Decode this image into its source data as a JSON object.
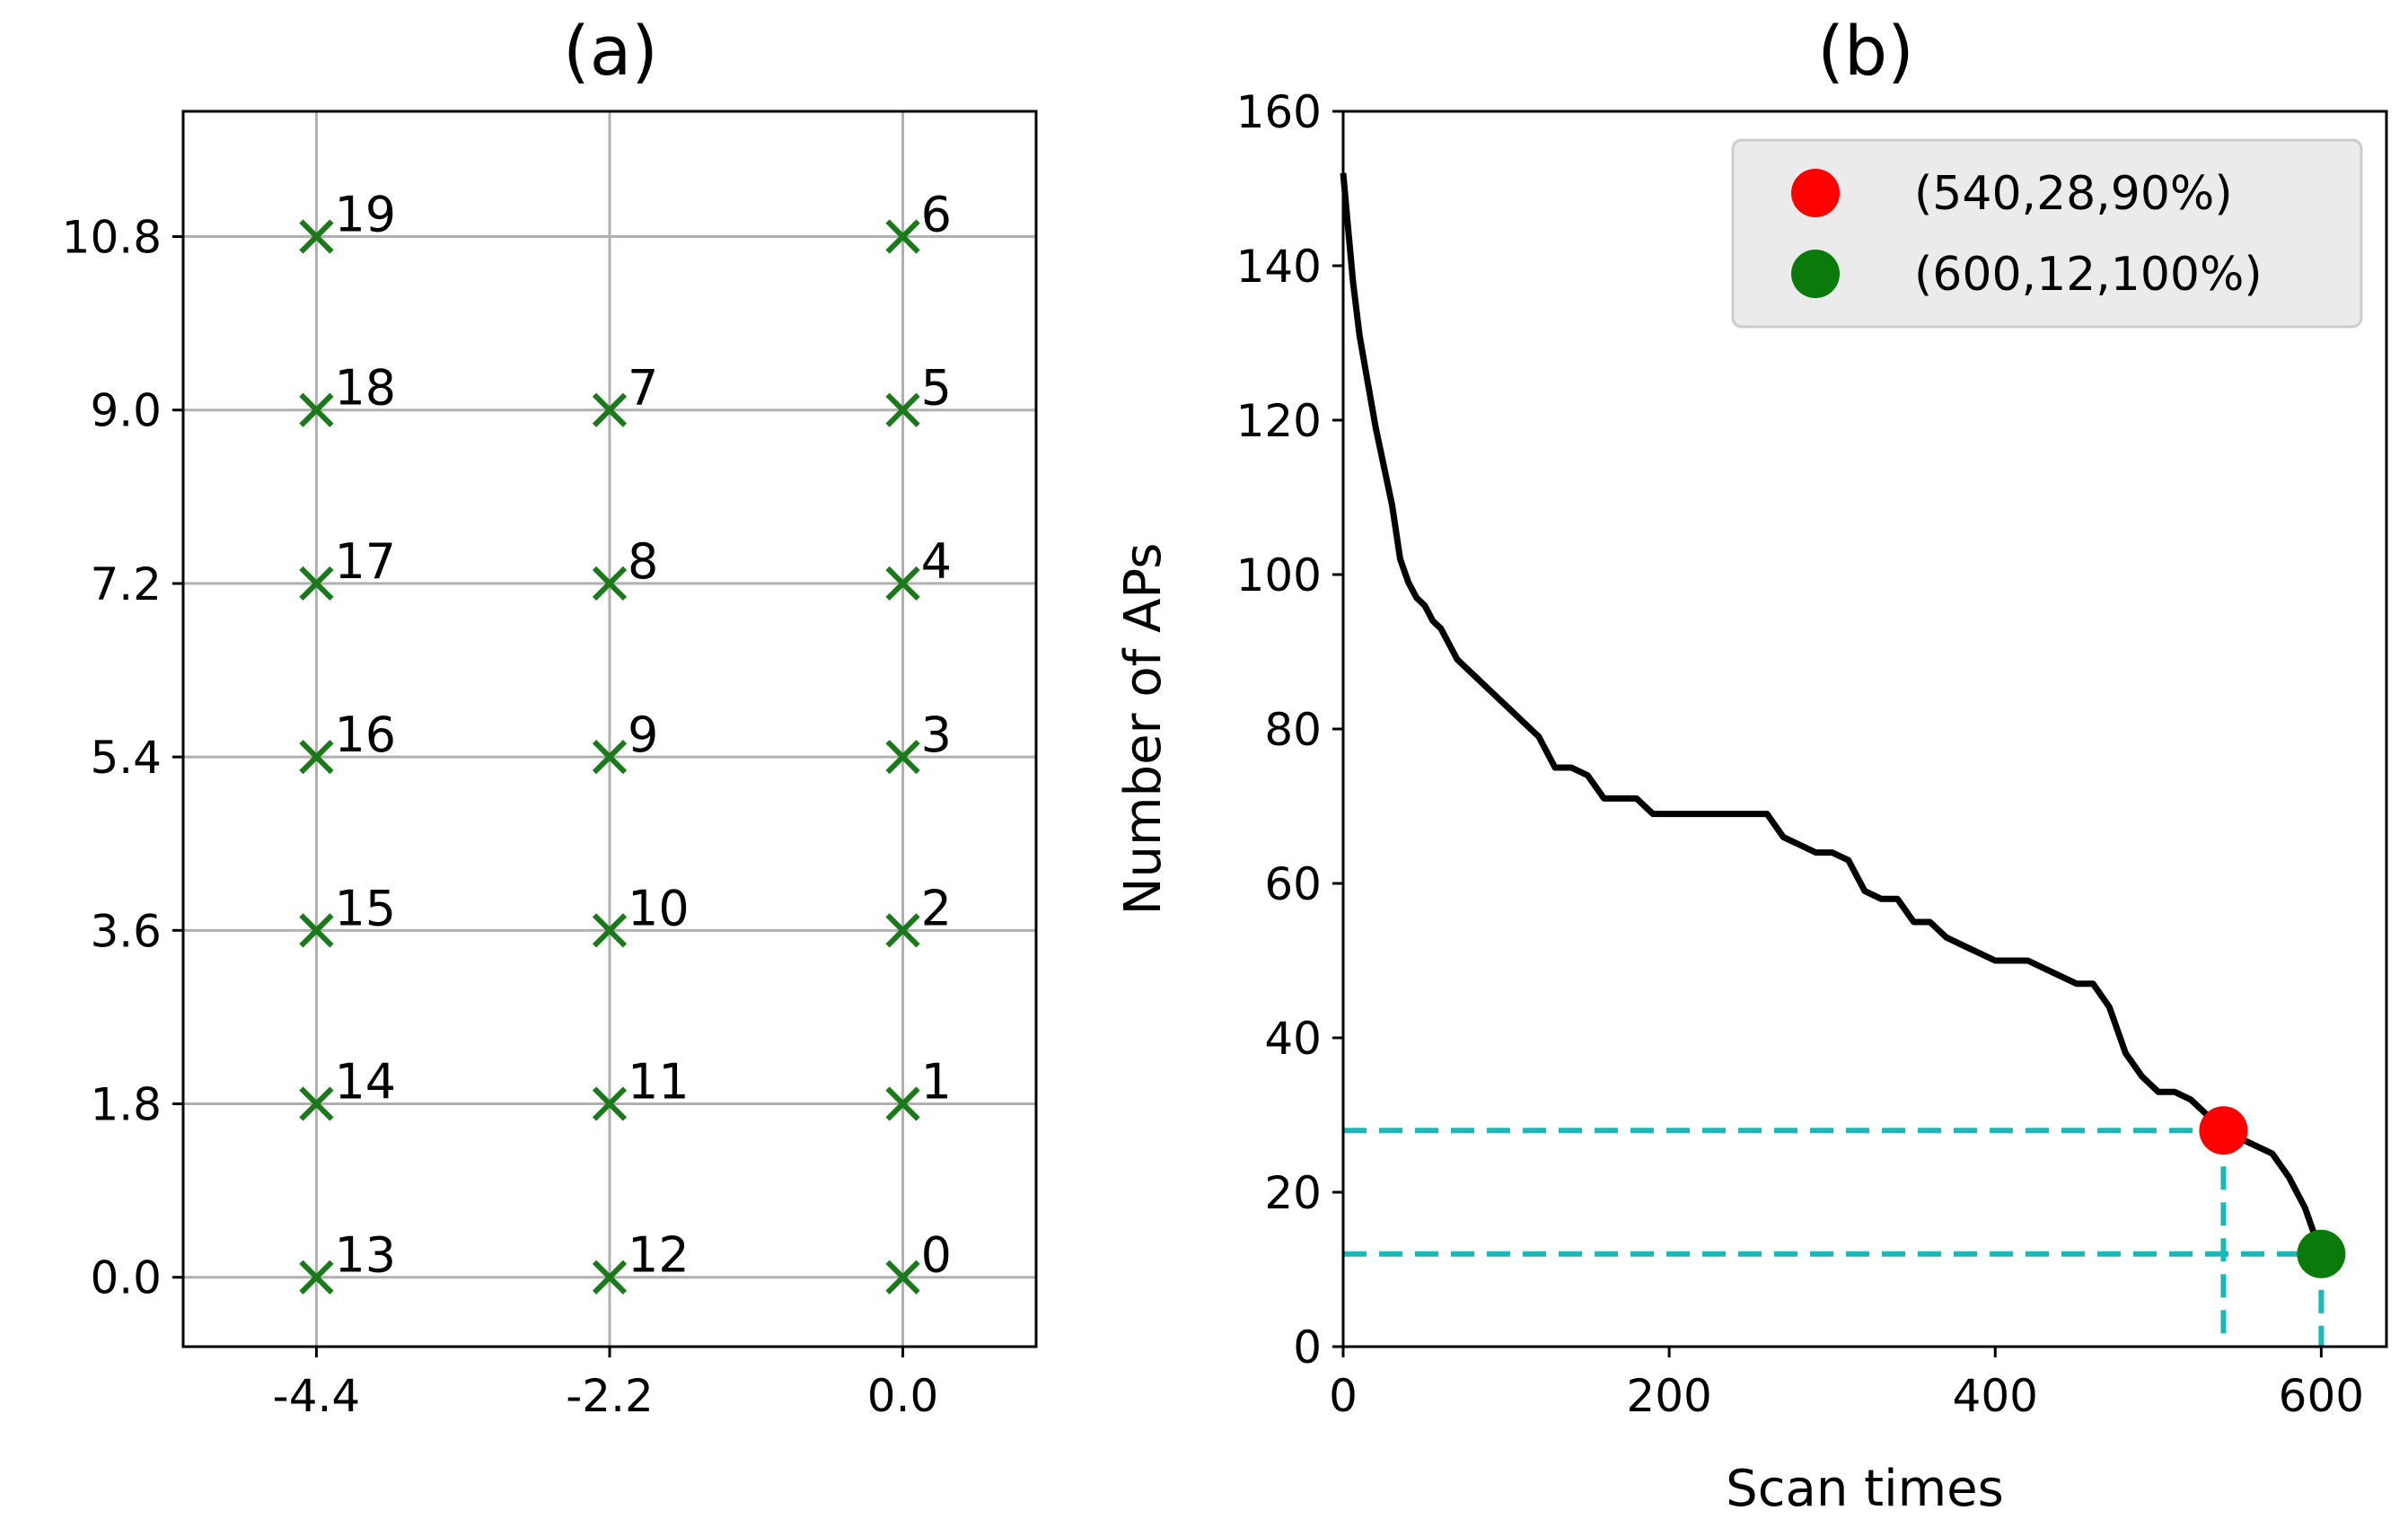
{
  "chart_data": [
    {
      "type": "scatter",
      "title": "(a)",
      "xlabel": "",
      "ylabel": "",
      "xlim": [
        -5.4,
        1.0
      ],
      "ylim": [
        -0.72,
        12.1
      ],
      "xticks": [
        "-4.4",
        "-2.2",
        "0.0"
      ],
      "xtick_values": [
        -4.4,
        -2.2,
        0.0
      ],
      "yticks": [
        "0.0",
        "1.8",
        "3.6",
        "5.4",
        "7.2",
        "9.0",
        "10.8"
      ],
      "ytick_values": [
        0.0,
        1.8,
        3.6,
        5.4,
        7.2,
        9.0,
        10.8
      ],
      "grid": true,
      "marker": "x",
      "marker_color": "#1a7a1a",
      "points": [
        {
          "label": "0",
          "x": 0.0,
          "y": 0.0
        },
        {
          "label": "1",
          "x": 0.0,
          "y": 1.8
        },
        {
          "label": "2",
          "x": 0.0,
          "y": 3.6
        },
        {
          "label": "3",
          "x": 0.0,
          "y": 5.4
        },
        {
          "label": "4",
          "x": 0.0,
          "y": 7.2
        },
        {
          "label": "5",
          "x": 0.0,
          "y": 9.0
        },
        {
          "label": "6",
          "x": 0.0,
          "y": 10.8
        },
        {
          "label": "7",
          "x": -2.2,
          "y": 9.0
        },
        {
          "label": "8",
          "x": -2.2,
          "y": 7.2
        },
        {
          "label": "9",
          "x": -2.2,
          "y": 5.4
        },
        {
          "label": "10",
          "x": -2.2,
          "y": 3.6
        },
        {
          "label": "11",
          "x": -2.2,
          "y": 1.8
        },
        {
          "label": "12",
          "x": -2.2,
          "y": 0.0
        },
        {
          "label": "13",
          "x": -4.4,
          "y": 0.0
        },
        {
          "label": "14",
          "x": -4.4,
          "y": 1.8
        },
        {
          "label": "15",
          "x": -4.4,
          "y": 3.6
        },
        {
          "label": "16",
          "x": -4.4,
          "y": 5.4
        },
        {
          "label": "17",
          "x": -4.4,
          "y": 7.2
        },
        {
          "label": "18",
          "x": -4.4,
          "y": 9.0
        },
        {
          "label": "19",
          "x": -4.4,
          "y": 10.8
        }
      ]
    },
    {
      "type": "line",
      "title": "(b)",
      "xlabel": "Scan times",
      "ylabel": "Number of APs",
      "xlim": [
        0,
        640
      ],
      "ylim": [
        0,
        160
      ],
      "xticks": [
        "0",
        "200",
        "400",
        "600"
      ],
      "xtick_values": [
        0,
        200,
        400,
        600
      ],
      "yticks": [
        "0",
        "20",
        "40",
        "60",
        "80",
        "100",
        "120",
        "140",
        "160"
      ],
      "ytick_values": [
        0,
        20,
        40,
        60,
        80,
        100,
        120,
        140,
        160
      ],
      "grid": false,
      "line_color": "#000000",
      "series": [
        {
          "name": "Number of APs",
          "x": [
            0,
            3,
            6,
            10,
            15,
            20,
            25,
            30,
            35,
            40,
            45,
            50,
            55,
            60,
            65,
            70,
            80,
            90,
            100,
            110,
            120,
            130,
            140,
            150,
            160,
            170,
            180,
            190,
            200,
            220,
            240,
            260,
            270,
            280,
            290,
            300,
            310,
            320,
            330,
            340,
            350,
            360,
            370,
            380,
            390,
            400,
            410,
            420,
            430,
            440,
            450,
            460,
            470,
            480,
            490,
            500,
            510,
            520,
            530,
            540,
            550,
            560,
            570,
            580,
            590,
            600
          ],
          "y": [
            152,
            145,
            138,
            131,
            125,
            119,
            114,
            109,
            102,
            99,
            97,
            96,
            94,
            93,
            91,
            89,
            87,
            85,
            83,
            81,
            79,
            75,
            75,
            74,
            71,
            71,
            71,
            69,
            69,
            69,
            69,
            69,
            66,
            65,
            64,
            64,
            63,
            59,
            58,
            58,
            55,
            55,
            53,
            52,
            51,
            50,
            50,
            50,
            49,
            48,
            47,
            47,
            44,
            38,
            35,
            33,
            33,
            32,
            30,
            28,
            27,
            26,
            25,
            22,
            18,
            12
          ]
        }
      ],
      "legend_position": "top-right",
      "markers": [
        {
          "label": "(540,28,90%)",
          "x": 540,
          "y": 28,
          "color": "#ff0000"
        },
        {
          "label": "(600,12,100%)",
          "x": 600,
          "y": 12,
          "color": "#0a7a0a"
        }
      ],
      "reference_line_color": "#1ab8b8"
    }
  ]
}
